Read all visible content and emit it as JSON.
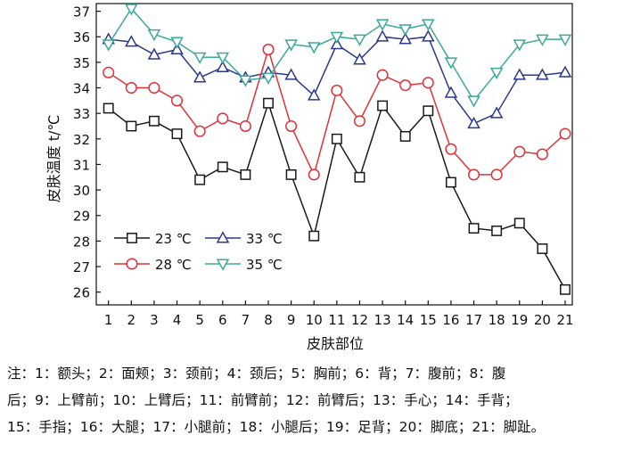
{
  "chart_data": {
    "type": "line",
    "xlabel": "皮肤部位",
    "ylabel": "皮肤温度 t/℃",
    "ylim": [
      25.5,
      37.3
    ],
    "yticks": [
      26,
      27,
      28,
      29,
      30,
      31,
      32,
      33,
      34,
      35,
      36,
      37
    ],
    "categories": [
      "1",
      "2",
      "3",
      "4",
      "5",
      "6",
      "7",
      "8",
      "9",
      "10",
      "11",
      "12",
      "13",
      "14",
      "15",
      "16",
      "17",
      "18",
      "19",
      "20",
      "21"
    ],
    "legend_position": "bottom-left",
    "grid": false,
    "series": [
      {
        "name": "23 ℃",
        "marker": "square",
        "color": "#1a1a1a",
        "values": [
          33.2,
          32.5,
          32.7,
          32.2,
          30.4,
          30.9,
          30.6,
          33.4,
          30.6,
          28.2,
          32.0,
          30.5,
          33.3,
          32.1,
          33.1,
          30.3,
          28.5,
          28.4,
          28.7,
          27.7,
          26.1
        ]
      },
      {
        "name": "33 ℃",
        "marker": "triangle-up",
        "color": "#2a3a8c",
        "values": [
          35.9,
          35.8,
          35.3,
          35.5,
          34.4,
          34.8,
          34.4,
          34.6,
          34.5,
          33.7,
          35.7,
          35.1,
          36.0,
          35.9,
          36.0,
          33.8,
          32.6,
          33.0,
          34.5,
          34.5,
          34.6
        ]
      },
      {
        "name": "28 ℃",
        "marker": "circle",
        "color": "#e0313a",
        "values": [
          34.6,
          34.0,
          34.0,
          33.5,
          32.3,
          32.8,
          32.5,
          35.5,
          32.5,
          30.6,
          33.9,
          32.7,
          34.5,
          34.1,
          34.2,
          31.6,
          30.6,
          30.6,
          31.5,
          31.4,
          32.2
        ]
      },
      {
        "name": "35 ℃",
        "marker": "triangle-down",
        "color": "#3aa89a",
        "values": [
          35.7,
          37.1,
          36.1,
          35.8,
          35.2,
          35.2,
          34.3,
          34.4,
          35.7,
          35.6,
          36.0,
          35.9,
          36.5,
          36.3,
          36.5,
          35.0,
          33.5,
          34.6,
          35.7,
          35.9,
          35.9
        ]
      }
    ]
  },
  "note": {
    "lines": [
      "注：1：额头；2：面颊；3：颈前；4：颈后；5：胸前；6：背；7：腹前；8：腹",
      "后；9：上臂前；10：上臂后；11：前臂前；12：前臂后；13：手心；14：手背；",
      "15：手指；16：大腿；17：小腿前；18：小腿后；19：足背；20：脚底；21：脚趾。"
    ]
  }
}
